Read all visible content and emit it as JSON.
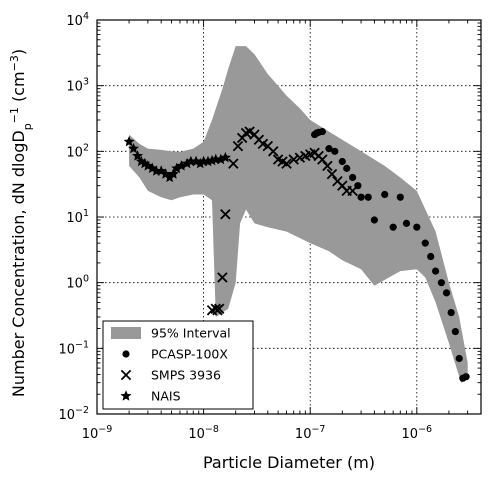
{
  "chart_data": {
    "type": "scatter",
    "xlabel": "Particle Diameter (m)",
    "ylabel": "Number Concentration, dN dlogD_p^-1 (cm^-3)",
    "xscale": "log",
    "yscale": "log",
    "xlim": [
      1e-09,
      4e-06
    ],
    "ylim": [
      0.01,
      10000
    ],
    "x_ticks": [
      {
        "value": 1e-09,
        "mantissa": "10",
        "exp": "−9"
      },
      {
        "value": 1e-08,
        "mantissa": "10",
        "exp": "−8"
      },
      {
        "value": 1e-07,
        "mantissa": "10",
        "exp": "−7"
      },
      {
        "value": 1e-06,
        "mantissa": "10",
        "exp": "−6"
      }
    ],
    "y_ticks": [
      {
        "value": 0.01,
        "mantissa": "10",
        "exp": "−2"
      },
      {
        "value": 0.1,
        "mantissa": "10",
        "exp": "−1"
      },
      {
        "value": 1,
        "mantissa": "10",
        "exp": "0"
      },
      {
        "value": 10,
        "mantissa": "10",
        "exp": "1"
      },
      {
        "value": 100,
        "mantissa": "10",
        "exp": "2"
      },
      {
        "value": 1000,
        "mantissa": "10",
        "exp": "3"
      },
      {
        "value": 10000,
        "mantissa": "10",
        "exp": "4"
      }
    ],
    "grid": true,
    "legend_position": "lower-left",
    "interval": {
      "name": "95% Interval",
      "color": "#999999",
      "upper": [
        [
          2e-09,
          180
        ],
        [
          2.5e-09,
          130
        ],
        [
          3e-09,
          110
        ],
        [
          4e-09,
          105
        ],
        [
          5e-09,
          100
        ],
        [
          6e-09,
          98
        ],
        [
          8e-09,
          110
        ],
        [
          1e-08,
          140
        ],
        [
          1.2e-08,
          300
        ],
        [
          1.5e-08,
          900
        ],
        [
          1.7e-08,
          1800
        ],
        [
          2e-08,
          4000
        ],
        [
          2.5e-08,
          4000
        ],
        [
          3e-08,
          3000
        ],
        [
          4e-08,
          1500
        ],
        [
          5e-08,
          1000
        ],
        [
          6e-08,
          700
        ],
        [
          8e-08,
          450
        ],
        [
          1e-07,
          300
        ],
        [
          1.2e-07,
          250
        ],
        [
          1.5e-07,
          200
        ],
        [
          2e-07,
          150
        ],
        [
          3e-07,
          100
        ],
        [
          5e-07,
          60
        ],
        [
          7e-07,
          40
        ],
        [
          1e-06,
          25
        ],
        [
          1.5e-06,
          6
        ],
        [
          2e-06,
          1
        ],
        [
          2.5e-06,
          0.3
        ],
        [
          3e-06,
          0.06
        ]
      ],
      "lower": [
        [
          3e-06,
          0.035
        ],
        [
          2.6e-06,
          0.03
        ],
        [
          2e-06,
          0.12
        ],
        [
          1.5e-06,
          0.5
        ],
        [
          1.2e-06,
          1.2
        ],
        [
          1e-06,
          1.6
        ],
        [
          7e-07,
          1.5
        ],
        [
          5e-07,
          1.1
        ],
        [
          4e-07,
          0.9
        ],
        [
          3e-07,
          1.6
        ],
        [
          2e-07,
          2.2
        ],
        [
          1.5e-07,
          3
        ],
        [
          1e-07,
          4
        ],
        [
          6e-08,
          6
        ],
        [
          4e-08,
          7
        ],
        [
          3e-08,
          8
        ],
        [
          2.5e-08,
          13
        ],
        [
          2.2e-08,
          8
        ],
        [
          2e-08,
          1
        ],
        [
          1.7e-08,
          0.4
        ],
        [
          1.3e-08,
          0.3
        ],
        [
          1.2e-08,
          18
        ],
        [
          1e-08,
          22
        ],
        [
          8e-09,
          22
        ],
        [
          6e-09,
          20
        ],
        [
          5e-09,
          18
        ],
        [
          4e-09,
          20
        ],
        [
          3e-09,
          25
        ],
        [
          2.5e-09,
          40
        ],
        [
          2e-09,
          60
        ]
      ]
    },
    "series": [
      {
        "name": "PCASP-100X",
        "marker": "circle",
        "points": [
          [
            1.1e-07,
            180
          ],
          [
            1.15e-07,
            190
          ],
          [
            1.2e-07,
            195
          ],
          [
            1.3e-07,
            200
          ],
          [
            1.5e-07,
            110
          ],
          [
            1.7e-07,
            100
          ],
          [
            2e-07,
            70
          ],
          [
            2.2e-07,
            55
          ],
          [
            2.5e-07,
            40
          ],
          [
            2.8e-07,
            30
          ],
          [
            3e-07,
            20
          ],
          [
            3.5e-07,
            20
          ],
          [
            4e-07,
            9
          ],
          [
            5e-07,
            22
          ],
          [
            6e-07,
            7
          ],
          [
            7e-07,
            20
          ],
          [
            8e-07,
            8
          ],
          [
            1e-06,
            7
          ],
          [
            1.2e-06,
            4
          ],
          [
            1.35e-06,
            2.5
          ],
          [
            1.5e-06,
            1.5
          ],
          [
            1.7e-06,
            1
          ],
          [
            1.9e-06,
            0.7
          ],
          [
            2.1e-06,
            0.35
          ],
          [
            2.3e-06,
            0.18
          ],
          [
            2.5e-06,
            0.07
          ],
          [
            2.7e-06,
            0.035
          ],
          [
            2.9e-06,
            0.037
          ]
        ]
      },
      {
        "name": "SMPS 3936",
        "marker": "x",
        "points": [
          [
            1.2e-08,
            0.38
          ],
          [
            1.3e-08,
            0.4
          ],
          [
            1.35e-08,
            0.38
          ],
          [
            1.4e-08,
            0.4
          ],
          [
            1.5e-08,
            1.2
          ],
          [
            1.6e-08,
            11
          ],
          [
            1.9e-08,
            65
          ],
          [
            2.1e-08,
            120
          ],
          [
            2.3e-08,
            160
          ],
          [
            2.5e-08,
            190
          ],
          [
            2.7e-08,
            200
          ],
          [
            3e-08,
            180
          ],
          [
            3.3e-08,
            150
          ],
          [
            3.6e-08,
            130
          ],
          [
            4e-08,
            120
          ],
          [
            4.5e-08,
            100
          ],
          [
            5e-08,
            75
          ],
          [
            5.5e-08,
            70
          ],
          [
            6e-08,
            65
          ],
          [
            7e-08,
            75
          ],
          [
            8e-08,
            80
          ],
          [
            9e-08,
            85
          ],
          [
            1e-07,
            90
          ],
          [
            1.1e-07,
            95
          ],
          [
            1.2e-07,
            85
          ],
          [
            1.3e-07,
            75
          ],
          [
            1.45e-07,
            60
          ],
          [
            1.6e-07,
            45
          ],
          [
            1.8e-07,
            35
          ],
          [
            2e-07,
            30
          ],
          [
            2.2e-07,
            25
          ],
          [
            2.5e-07,
            25
          ]
        ]
      },
      {
        "name": "NAIS",
        "marker": "star",
        "points": [
          [
            2e-09,
            140
          ],
          [
            2.2e-09,
            110
          ],
          [
            2.4e-09,
            85
          ],
          [
            2.6e-09,
            70
          ],
          [
            2.8e-09,
            65
          ],
          [
            3e-09,
            60
          ],
          [
            3.3e-09,
            55
          ],
          [
            3.6e-09,
            50
          ],
          [
            4e-09,
            50
          ],
          [
            4.4e-09,
            45
          ],
          [
            4.8e-09,
            40
          ],
          [
            5.2e-09,
            45
          ],
          [
            5.6e-09,
            55
          ],
          [
            6.2e-09,
            60
          ],
          [
            7e-09,
            65
          ],
          [
            7.6e-09,
            70
          ],
          [
            8.5e-09,
            70
          ],
          [
            9.3e-09,
            65
          ],
          [
            1e-08,
            70
          ],
          [
            1.1e-08,
            70
          ],
          [
            1.2e-08,
            72
          ],
          [
            1.3e-08,
            75
          ],
          [
            1.45e-08,
            75
          ],
          [
            1.6e-08,
            80
          ]
        ]
      }
    ]
  }
}
